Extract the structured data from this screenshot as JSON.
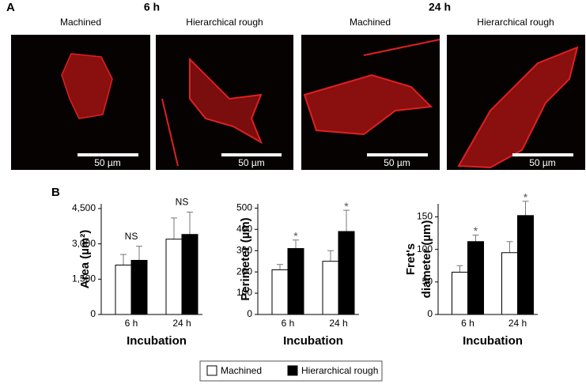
{
  "panel_a": {
    "label": "A",
    "time_labels": [
      "6 h",
      "24 h"
    ],
    "image_labels": [
      "Machined",
      "Hierarchical rough",
      "Machined",
      "Hierarchical rough"
    ],
    "scale_bar": "50 µm"
  },
  "panel_b": {
    "label": "B"
  },
  "chart_data": [
    {
      "type": "bar",
      "ylabel": "Area (µm²)",
      "xlabel": "Incubation",
      "categories": [
        "6 h",
        "24 h"
      ],
      "annotations": [
        "NS",
        "NS"
      ],
      "series": [
        {
          "name": "Machined",
          "color": "#ffffff",
          "values": [
            2100,
            3200
          ],
          "errors": [
            450,
            900
          ]
        },
        {
          "name": "Hierarchical rough",
          "color": "#000000",
          "values": [
            2300,
            3400
          ],
          "errors": [
            600,
            950
          ]
        }
      ],
      "ylim": [
        0,
        4700
      ],
      "yticks": [
        0,
        {
          "value": 1500,
          "label": "1,500"
        },
        {
          "value": 3000,
          "label": "3,000"
        },
        {
          "value": 4500,
          "label": "4,500"
        }
      ]
    },
    {
      "type": "bar",
      "ylabel": "Perimeter (µm)",
      "xlabel": "Incubation",
      "categories": [
        "6 h",
        "24 h"
      ],
      "series": [
        {
          "name": "Machined",
          "color": "#ffffff",
          "values": [
            210,
            250
          ],
          "errors": [
            25,
            50
          ]
        },
        {
          "name": "Hierarchical rough",
          "color": "#000000",
          "values": [
            310,
            390
          ],
          "errors": [
            40,
            100
          ],
          "annotations": [
            "*",
            "*"
          ]
        }
      ],
      "ylim": [
        0,
        520
      ],
      "yticks": [
        0,
        100,
        200,
        300,
        400,
        500
      ]
    },
    {
      "type": "bar",
      "ylabel": [
        "Fret's",
        "diameter (µm)"
      ],
      "xlabel": "Incubation",
      "categories": [
        "6 h",
        "24 h"
      ],
      "series": [
        {
          "name": "Machined",
          "color": "#ffffff",
          "values": [
            65,
            95
          ],
          "errors": [
            10,
            17
          ]
        },
        {
          "name": "Hierarchical rough",
          "color": "#000000",
          "values": [
            112,
            152
          ],
          "errors": [
            10,
            22
          ],
          "annotations": [
            "*",
            "*"
          ]
        }
      ],
      "ylim": [
        0,
        170
      ],
      "yticks": [
        0,
        50,
        100,
        150
      ]
    }
  ]
}
